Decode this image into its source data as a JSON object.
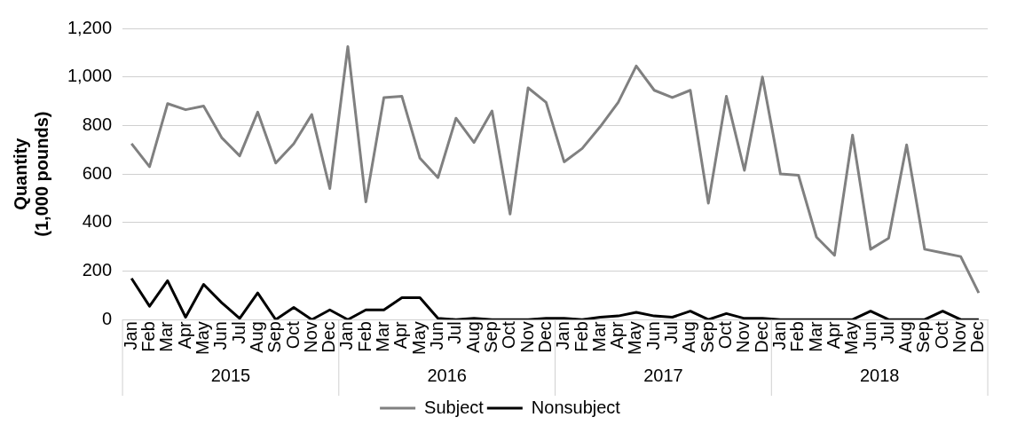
{
  "chart_data": {
    "type": "line",
    "ylabel": "Quantity\n(1,000 pounds)",
    "categories": [
      "Jan",
      "Feb",
      "Mar",
      "Apr",
      "May",
      "Jun",
      "Jul",
      "Aug",
      "Sep",
      "Oct",
      "Nov",
      "Dec",
      "Jan",
      "Feb",
      "Mar",
      "Apr",
      "May",
      "Jun",
      "Jul",
      "Aug",
      "Sep",
      "Oct",
      "Nov",
      "Dec",
      "Jan",
      "Feb",
      "Mar",
      "Apr",
      "May",
      "Jun",
      "Jul",
      "Aug",
      "Sep",
      "Oct",
      "Nov",
      "Dec",
      "Jan",
      "Feb",
      "Mar",
      "Apr",
      "May",
      "Jun",
      "Jul",
      "Aug",
      "Sep",
      "Oct",
      "Nov",
      "Dec"
    ],
    "annotations": [
      "2015",
      "2016",
      "2017",
      "2018"
    ],
    "series": [
      {
        "name": "Subject",
        "color": "#808080",
        "values": [
          725,
          630,
          890,
          865,
          880,
          750,
          675,
          855,
          645,
          725,
          845,
          540,
          1125,
          485,
          915,
          920,
          665,
          585,
          830,
          730,
          860,
          435,
          955,
          895,
          650,
          705,
          795,
          895,
          1045,
          945,
          915,
          945,
          480,
          920,
          615,
          1000,
          600,
          595,
          340,
          265,
          760,
          290,
          335,
          720,
          290,
          275,
          260,
          110
        ]
      },
      {
        "name": "Nonsubject",
        "color": "#000000",
        "values": [
          170,
          55,
          160,
          10,
          145,
          70,
          5,
          110,
          0,
          50,
          0,
          40,
          0,
          40,
          40,
          90,
          90,
          5,
          0,
          5,
          0,
          0,
          0,
          5,
          5,
          0,
          10,
          15,
          30,
          15,
          10,
          35,
          0,
          25,
          5,
          5,
          0,
          0,
          0,
          0,
          0,
          35,
          0,
          0,
          0,
          35,
          0,
          0
        ]
      }
    ],
    "ylim": [
      0,
      1200
    ],
    "yticks": [
      0,
      200,
      400,
      600,
      800,
      {
        "value": 1000,
        "label": "1,000"
      },
      {
        "value": 1200,
        "label": "1,200"
      }
    ],
    "grid": "y",
    "legend": "bottom",
    "marker": "none",
    "line_style": "solid"
  }
}
